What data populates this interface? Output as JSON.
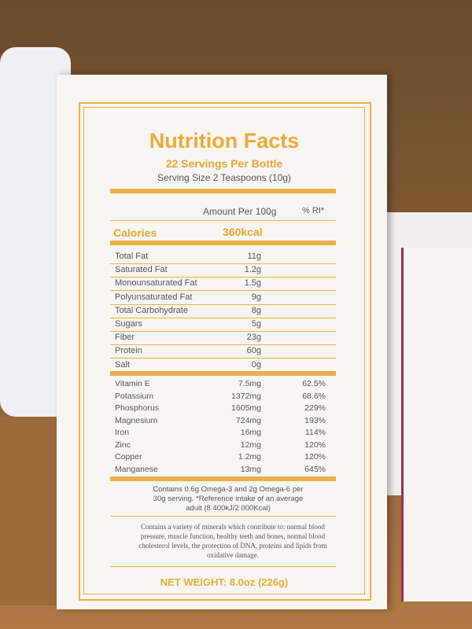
{
  "header": {
    "title": "Nutrition Facts",
    "servings": "22 Servings Per Bottle",
    "serving_size": "Serving Size 2 Teaspoons (10g)"
  },
  "columns": {
    "amount": "Amount Per 100g",
    "ri": "% RI*"
  },
  "calories": {
    "label": "Calories",
    "value": "360kcal"
  },
  "nutrients": [
    [
      "Total Fat",
      "11g"
    ],
    [
      "Saturated Fat",
      "1.2g"
    ],
    [
      "Monounsaturated Fat",
      "1.5g"
    ],
    [
      "Polyunsaturated Fat",
      "9g"
    ],
    [
      "Total Carbohydrate",
      "8g"
    ],
    [
      "Sugars",
      "5g"
    ],
    [
      "Fiber",
      "23g"
    ],
    [
      "Protein",
      "60g"
    ],
    [
      "Salt",
      "0g"
    ]
  ],
  "minerals": [
    [
      "Vitamin E",
      "7.5mg",
      "62.5%"
    ],
    [
      "Potassium",
      "1372mg",
      "68.6%"
    ],
    [
      "Phosphorus",
      "1605mg",
      "229%"
    ],
    [
      "Magnesium",
      "724mg",
      "193%"
    ],
    [
      "Iron",
      "16mg",
      "114%"
    ],
    [
      "Zinc",
      "12mg",
      "120%"
    ],
    [
      "Copper",
      "1.2mg",
      "120%"
    ],
    [
      "Manganese",
      "13mg",
      "645%"
    ]
  ],
  "footnote": "Contains 0.6g Omega-3 and 2g Omega-6 per 30g serving. *Reference intake of an average adult (8 400kJ/2 000Kcal)",
  "claim": "Contains a variety of minerals which contribute to: normal blood pressure, muscle function, healthy teeth and bones, normal blood cholesterol levels, the protection of DNA, proteins and lipids from oxidative damage.",
  "net_weight": "NET WEIGHT: 8.0oz (226g)"
}
